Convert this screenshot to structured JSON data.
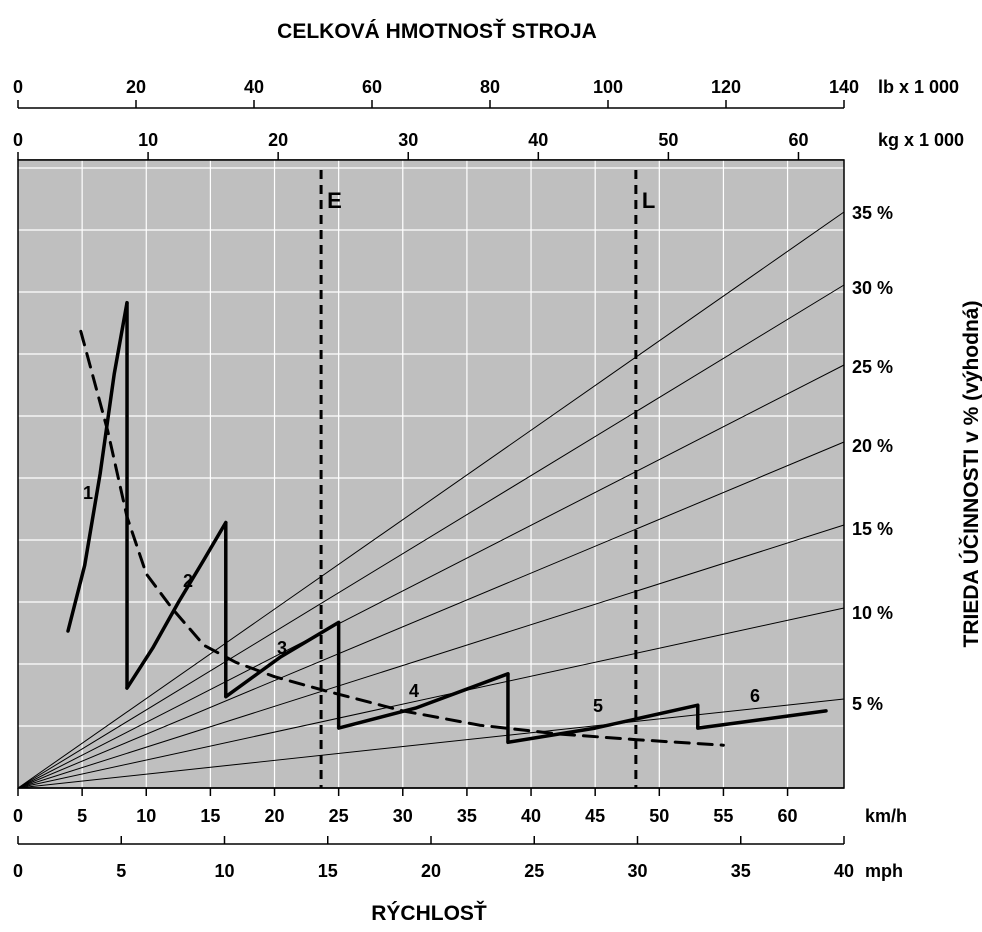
{
  "chart_data": {
    "type": "line",
    "title": "CELKOVÁ HMOTNOSŤ STROJA",
    "xlabel": "RÝCHLOSŤ",
    "ylabel": "TRIEDA ÚČINNOSTI v % (výhodná)",
    "axes": {
      "top_lb": {
        "unit": "lb x 1 000",
        "ticks": [
          0,
          20,
          40,
          60,
          80,
          100,
          120,
          140
        ],
        "range": [
          0,
          140
        ]
      },
      "top_kg": {
        "unit": "kg x 1 000",
        "ticks": [
          0,
          10,
          20,
          30,
          40,
          50,
          60
        ],
        "range": [
          0,
          63.5
        ]
      },
      "bottom_kmh": {
        "unit": "km/h",
        "ticks": [
          0,
          5,
          10,
          15,
          20,
          25,
          30,
          35,
          40,
          45,
          50,
          55,
          60
        ],
        "range": [
          0,
          64.4
        ]
      },
      "bottom_mph": {
        "unit": "mph",
        "ticks": [
          0,
          5,
          10,
          15,
          20,
          25,
          30,
          35,
          40
        ],
        "range": [
          0,
          40
        ]
      },
      "grade_lines": {
        "labels": [
          "35 %",
          "30 %",
          "25 %",
          "20 %",
          "15 %",
          "10 %",
          "5 %"
        ],
        "values": [
          35,
          30,
          25,
          20,
          15,
          10,
          5
        ]
      }
    },
    "rimpull_ylim": [
      0,
      22
    ],
    "markers": [
      {
        "label": "E",
        "kg": 23.3
      },
      {
        "label": "L",
        "kg": 47.5
      }
    ],
    "series": [
      {
        "name": "1",
        "points": [
          [
            3.9,
            5.5
          ],
          [
            5.2,
            7.8
          ],
          [
            6.4,
            11.0
          ],
          [
            7.5,
            14.5
          ],
          [
            8.5,
            17.0
          ]
        ]
      },
      {
        "name": "2",
        "points": [
          [
            8.5,
            3.5
          ],
          [
            10.5,
            4.9
          ],
          [
            12.5,
            6.5
          ],
          [
            14.5,
            8.0
          ],
          [
            16.2,
            9.3
          ]
        ]
      },
      {
        "name": "3",
        "points": [
          [
            16.2,
            3.2
          ],
          [
            20.5,
            4.6
          ],
          [
            25.0,
            5.8
          ]
        ]
      },
      {
        "name": "4",
        "points": [
          [
            25.0,
            2.1
          ],
          [
            31.0,
            2.8
          ],
          [
            38.2,
            4.0
          ]
        ]
      },
      {
        "name": "5",
        "points": [
          [
            38.2,
            1.6
          ],
          [
            45.0,
            2.1
          ],
          [
            53.0,
            2.9
          ]
        ]
      },
      {
        "name": "6",
        "points": [
          [
            53.0,
            2.1
          ],
          [
            58.0,
            2.4
          ],
          [
            63.0,
            2.7
          ]
        ]
      },
      {
        "name": "",
        "style": "dashed",
        "points": [
          [
            4.9,
            16.0
          ],
          [
            7.0,
            12.5
          ],
          [
            8.5,
            9.5
          ],
          [
            10.0,
            7.5
          ],
          [
            12.0,
            6.3
          ],
          [
            14.5,
            5.0
          ],
          [
            17.0,
            4.4
          ],
          [
            20.0,
            3.9
          ],
          [
            24.0,
            3.4
          ],
          [
            30.0,
            2.7
          ],
          [
            36.0,
            2.2
          ],
          [
            42.0,
            1.9
          ],
          [
            48.0,
            1.7
          ],
          [
            55.0,
            1.5
          ]
        ]
      }
    ]
  }
}
